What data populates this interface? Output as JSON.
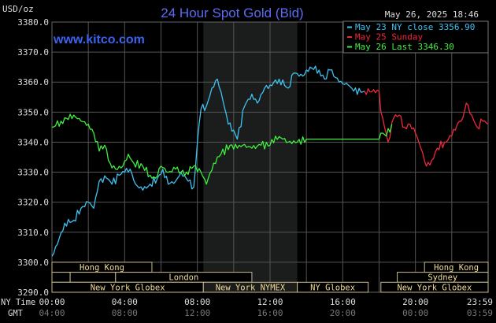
{
  "chart_data": {
    "type": "line",
    "title": "24 Hour Spot Gold (Bid)",
    "website": "www.kitco.com",
    "ylabel": "USD/oz",
    "timestamp": "May 26, 2025 18:46",
    "ylim": [
      3290,
      3380
    ],
    "yticks": [
      "3290.0",
      "3300.0",
      "3310.0",
      "3320.0",
      "3330.0",
      "3340.0",
      "3350.0",
      "3360.0",
      "3370.0",
      "3380.0"
    ],
    "ytick_values": [
      3290,
      3300,
      3310,
      3320,
      3330,
      3340,
      3350,
      3360,
      3370,
      3380
    ],
    "xlim_hours": [
      0,
      24
    ],
    "grid": true,
    "x_row_labels": {
      "ny": "NY Time",
      "gmt": "GMT"
    },
    "xticks": [
      {
        "hour": 0,
        "ny": "00:00",
        "gmt": "04:00"
      },
      {
        "hour": 4,
        "ny": "04:00",
        "gmt": "08:00"
      },
      {
        "hour": 8,
        "ny": "08:00",
        "gmt": "12:00"
      },
      {
        "hour": 12,
        "ny": "12:00",
        "gmt": "16:00"
      },
      {
        "hour": 16,
        "ny": "16:00",
        "gmt": "20:00"
      },
      {
        "hour": 20,
        "ny": "20:00",
        "gmt": "00:00"
      },
      {
        "hour": 23.98,
        "ny": "23:59",
        "gmt": "03:59"
      }
    ],
    "shaded_region_hours": [
      8.33,
      13.5
    ],
    "legend_position": "top-right",
    "series": [
      {
        "name": "May 23 NY close 3356.90",
        "color": "#3ec3f2",
        "points": [
          [
            0,
            3302
          ],
          [
            0.3,
            3306
          ],
          [
            0.7,
            3313
          ],
          [
            1.2,
            3314
          ],
          [
            1.6,
            3318
          ],
          [
            2.0,
            3320
          ],
          [
            2.3,
            3318
          ],
          [
            2.6,
            3327
          ],
          [
            3.0,
            3328
          ],
          [
            3.3,
            3326
          ],
          [
            3.7,
            3329
          ],
          [
            4.0,
            3330
          ],
          [
            4.3,
            3331
          ],
          [
            4.6,
            3326
          ],
          [
            5.0,
            3324
          ],
          [
            5.4,
            3326
          ],
          [
            5.8,
            3328
          ],
          [
            6.1,
            3331
          ],
          [
            6.4,
            3326
          ],
          [
            6.8,
            3327
          ],
          [
            7.1,
            3330
          ],
          [
            7.5,
            3327
          ],
          [
            7.8,
            3325
          ],
          [
            8.0,
            3340
          ],
          [
            8.2,
            3351
          ],
          [
            8.5,
            3352
          ],
          [
            8.8,
            3358
          ],
          [
            9.1,
            3361
          ],
          [
            9.4,
            3354
          ],
          [
            9.7,
            3346
          ],
          [
            10.0,
            3344
          ],
          [
            10.2,
            3341
          ],
          [
            10.6,
            3352
          ],
          [
            11.0,
            3356
          ],
          [
            11.3,
            3353
          ],
          [
            11.7,
            3358
          ],
          [
            12.0,
            3359
          ],
          [
            12.5,
            3361
          ],
          [
            13.0,
            3358
          ],
          [
            13.3,
            3363
          ],
          [
            13.8,
            3362
          ],
          [
            14.2,
            3365
          ],
          [
            14.7,
            3364
          ],
          [
            15.0,
            3361
          ],
          [
            15.3,
            3364
          ],
          [
            15.8,
            3360
          ],
          [
            16.3,
            3359
          ],
          [
            16.6,
            3357
          ],
          [
            17.2,
            3357
          ]
        ]
      },
      {
        "name": "May 25 Sunday",
        "color": "#f0283c",
        "points": [
          [
            17.2,
            3357
          ],
          [
            18.0,
            3357
          ],
          [
            18.1,
            3350
          ],
          [
            18.3,
            3345
          ],
          [
            18.5,
            3340
          ],
          [
            18.8,
            3348
          ],
          [
            19.1,
            3349
          ],
          [
            19.4,
            3345
          ],
          [
            19.7,
            3346
          ],
          [
            20.0,
            3343
          ],
          [
            20.3,
            3338
          ],
          [
            20.6,
            3332
          ],
          [
            20.9,
            3334
          ],
          [
            21.2,
            3338
          ],
          [
            21.6,
            3340
          ],
          [
            22.0,
            3342
          ],
          [
            22.3,
            3346
          ],
          [
            22.6,
            3348
          ],
          [
            22.8,
            3353
          ],
          [
            23.1,
            3349
          ],
          [
            23.4,
            3345
          ],
          [
            23.7,
            3347
          ],
          [
            23.98,
            3346
          ]
        ]
      },
      {
        "name": "May 26 Last 3346.30",
        "color": "#3ef03c",
        "points": [
          [
            0,
            3345
          ],
          [
            0.5,
            3347
          ],
          [
            1.2,
            3349
          ],
          [
            1.6,
            3347
          ],
          [
            2.0,
            3346
          ],
          [
            2.3,
            3343
          ],
          [
            2.6,
            3337
          ],
          [
            2.9,
            3339
          ],
          [
            3.2,
            3333
          ],
          [
            3.5,
            3331
          ],
          [
            3.9,
            3332
          ],
          [
            4.2,
            3336
          ],
          [
            4.5,
            3333
          ],
          [
            5.0,
            3332
          ],
          [
            5.4,
            3329
          ],
          [
            5.7,
            3328
          ],
          [
            6.0,
            3332
          ],
          [
            6.4,
            3330
          ],
          [
            6.8,
            3331
          ],
          [
            7.1,
            3330
          ],
          [
            7.4,
            3330
          ],
          [
            7.8,
            3332
          ],
          [
            8.2,
            3330
          ],
          [
            8.5,
            3326
          ],
          [
            8.9,
            3333
          ],
          [
            9.3,
            3336
          ],
          [
            9.8,
            3339
          ],
          [
            10.2,
            3338
          ],
          [
            10.5,
            3339
          ],
          [
            11.0,
            3338
          ],
          [
            11.5,
            3339
          ],
          [
            12.0,
            3339
          ],
          [
            12.3,
            3342
          ],
          [
            12.7,
            3341
          ],
          [
            13.0,
            3340
          ],
          [
            13.5,
            3340
          ],
          [
            14.0,
            3341
          ],
          [
            18.0,
            3341
          ],
          [
            18.1,
            3343
          ],
          [
            18.4,
            3342
          ],
          [
            18.7,
            3346
          ]
        ]
      }
    ],
    "sessions": [
      {
        "label": "Hong Kong",
        "row": 0,
        "start": 0,
        "end": 5.5
      },
      {
        "label": "Hong Kong",
        "row": 0,
        "start": 20.5,
        "end": 24
      },
      {
        "label": "",
        "row": 1,
        "start": 0,
        "end": 1
      },
      {
        "label": "",
        "row": 1,
        "start": 1,
        "end": 3.5
      },
      {
        "label": "London",
        "row": 1,
        "start": 3.5,
        "end": 11
      },
      {
        "label": "Sydney",
        "row": 1,
        "start": 19.0,
        "end": 24
      },
      {
        "label": "New York Globex",
        "row": 2,
        "start": 0,
        "end": 8.33
      },
      {
        "label": "New York NYMEX",
        "row": 2,
        "start": 8.33,
        "end": 13.5
      },
      {
        "label": "NY Globex",
        "row": 2,
        "start": 13.5,
        "end": 17.4
      },
      {
        "label": "New York Globex",
        "row": 2,
        "start": 18.1,
        "end": 24
      }
    ]
  }
}
